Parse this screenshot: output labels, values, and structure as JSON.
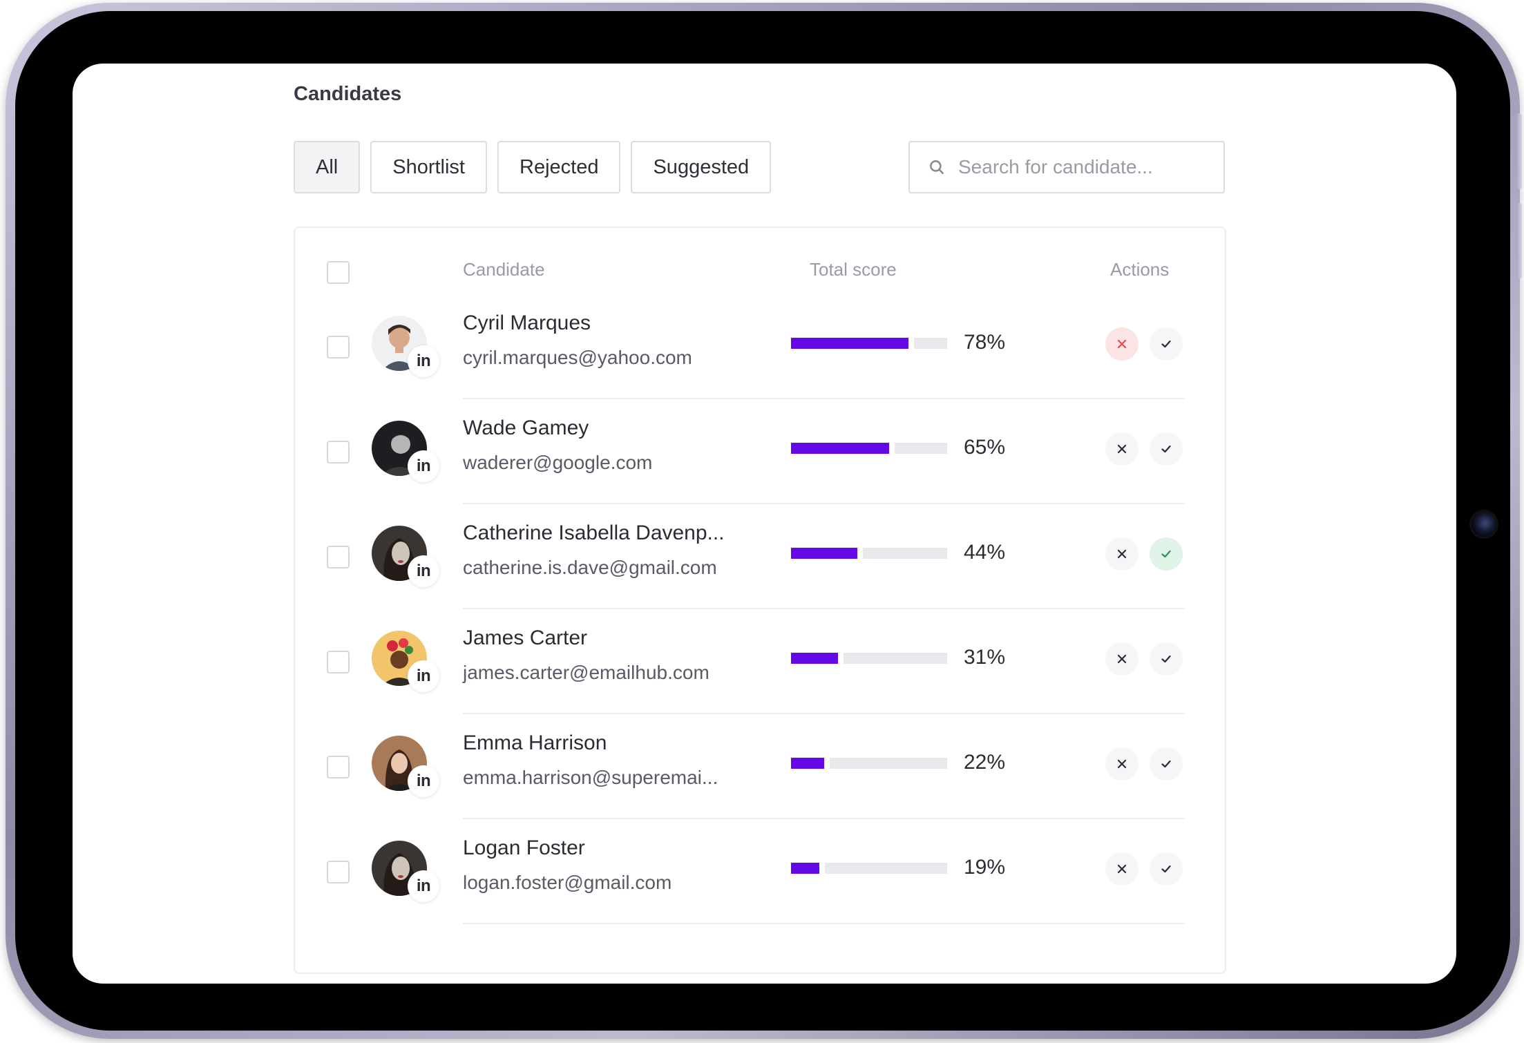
{
  "page": {
    "title": "Candidates"
  },
  "tabs": [
    {
      "label": "All",
      "active": true
    },
    {
      "label": "Shortlist",
      "active": false
    },
    {
      "label": "Rejected",
      "active": false
    },
    {
      "label": "Suggested",
      "active": false
    }
  ],
  "search": {
    "placeholder": "Search for candidate..."
  },
  "table": {
    "headers": {
      "candidate": "Candidate",
      "score": "Total score",
      "actions": "Actions"
    },
    "accent_color": "#6309e8",
    "rows": [
      {
        "name": "Cyril Marques",
        "email": "cyril.marques@yahoo.com",
        "score": 78,
        "score_label": "78%",
        "linkedin": "in",
        "state": "rejected"
      },
      {
        "name": "Wade Gamey",
        "email": "waderer@google.com",
        "score": 65,
        "score_label": "65%",
        "linkedin": "in",
        "state": "none"
      },
      {
        "name": "Catherine Isabella Davenp...",
        "email": "catherine.is.dave@gmail.com",
        "score": 44,
        "score_label": "44%",
        "linkedin": "in",
        "state": "accepted"
      },
      {
        "name": "James Carter",
        "email": "james.carter@emailhub.com",
        "score": 31,
        "score_label": "31%",
        "linkedin": "in",
        "state": "none"
      },
      {
        "name": "Emma Harrison",
        "email": "emma.harrison@superemai...",
        "score": 22,
        "score_label": "22%",
        "linkedin": "in",
        "state": "none"
      },
      {
        "name": "Logan Foster",
        "email": "logan.foster@gmail.com",
        "score": 19,
        "score_label": "19%",
        "linkedin": "in",
        "state": "none"
      }
    ]
  }
}
